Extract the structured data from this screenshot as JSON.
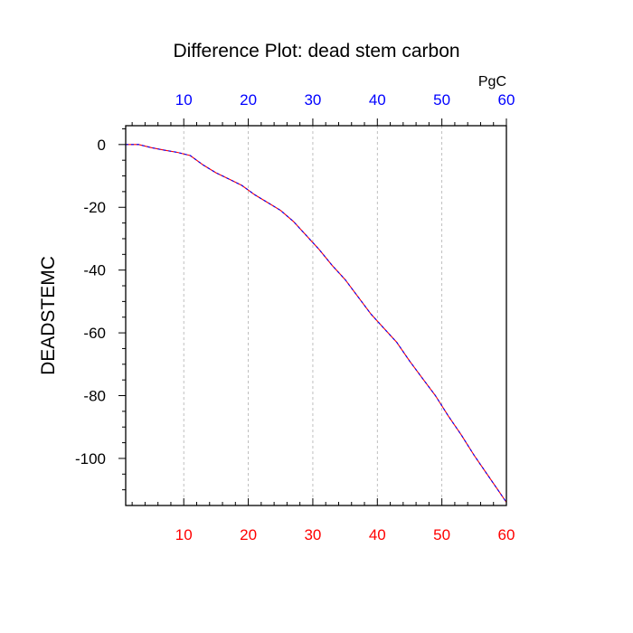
{
  "chart_data": {
    "type": "line",
    "title": "Difference Plot: dead stem carbon",
    "ylabel": "DEADSTEMC",
    "top_axis_unit": "PgC",
    "xlim": [
      1,
      60
    ],
    "ylim": [
      -115,
      6
    ],
    "x_ticks": [
      10,
      20,
      30,
      40,
      50,
      60
    ],
    "x_tick_labels": [
      "10",
      "20",
      "30",
      "40",
      "50",
      "60"
    ],
    "y_ticks": [
      0,
      -20,
      -40,
      -60,
      -80,
      -100
    ],
    "y_tick_labels": [
      "0",
      "-20",
      "-40",
      "-60",
      "-80",
      "-100"
    ],
    "grid": "vertical dashed at x ticks",
    "colors": {
      "bottom_tick_labels": "#ff0000",
      "top_tick_labels": "#0000ff",
      "line_primary": "#ff0000",
      "line_overlay": "#0000ff",
      "grid": "#b0b0b0",
      "axes": "#000000"
    },
    "series": [
      {
        "x": [
          1,
          3,
          5,
          7,
          9,
          11,
          13,
          15,
          17,
          19,
          21,
          23,
          25,
          27,
          29,
          31,
          33,
          35,
          37,
          39,
          41,
          43,
          45,
          47,
          49,
          51,
          53,
          55,
          57,
          59,
          60
        ],
        "values": [
          0,
          0,
          -1,
          -1.8,
          -2.5,
          -3.5,
          -6.5,
          -9,
          -11,
          -13,
          -16,
          -18.5,
          -21,
          -24.5,
          -29,
          -33.5,
          -38.5,
          -43,
          -48.5,
          -54,
          -58.5,
          -63,
          -69,
          -74.5,
          -80,
          -86.5,
          -92.5,
          -99,
          -105,
          -111,
          -114
        ]
      }
    ]
  }
}
